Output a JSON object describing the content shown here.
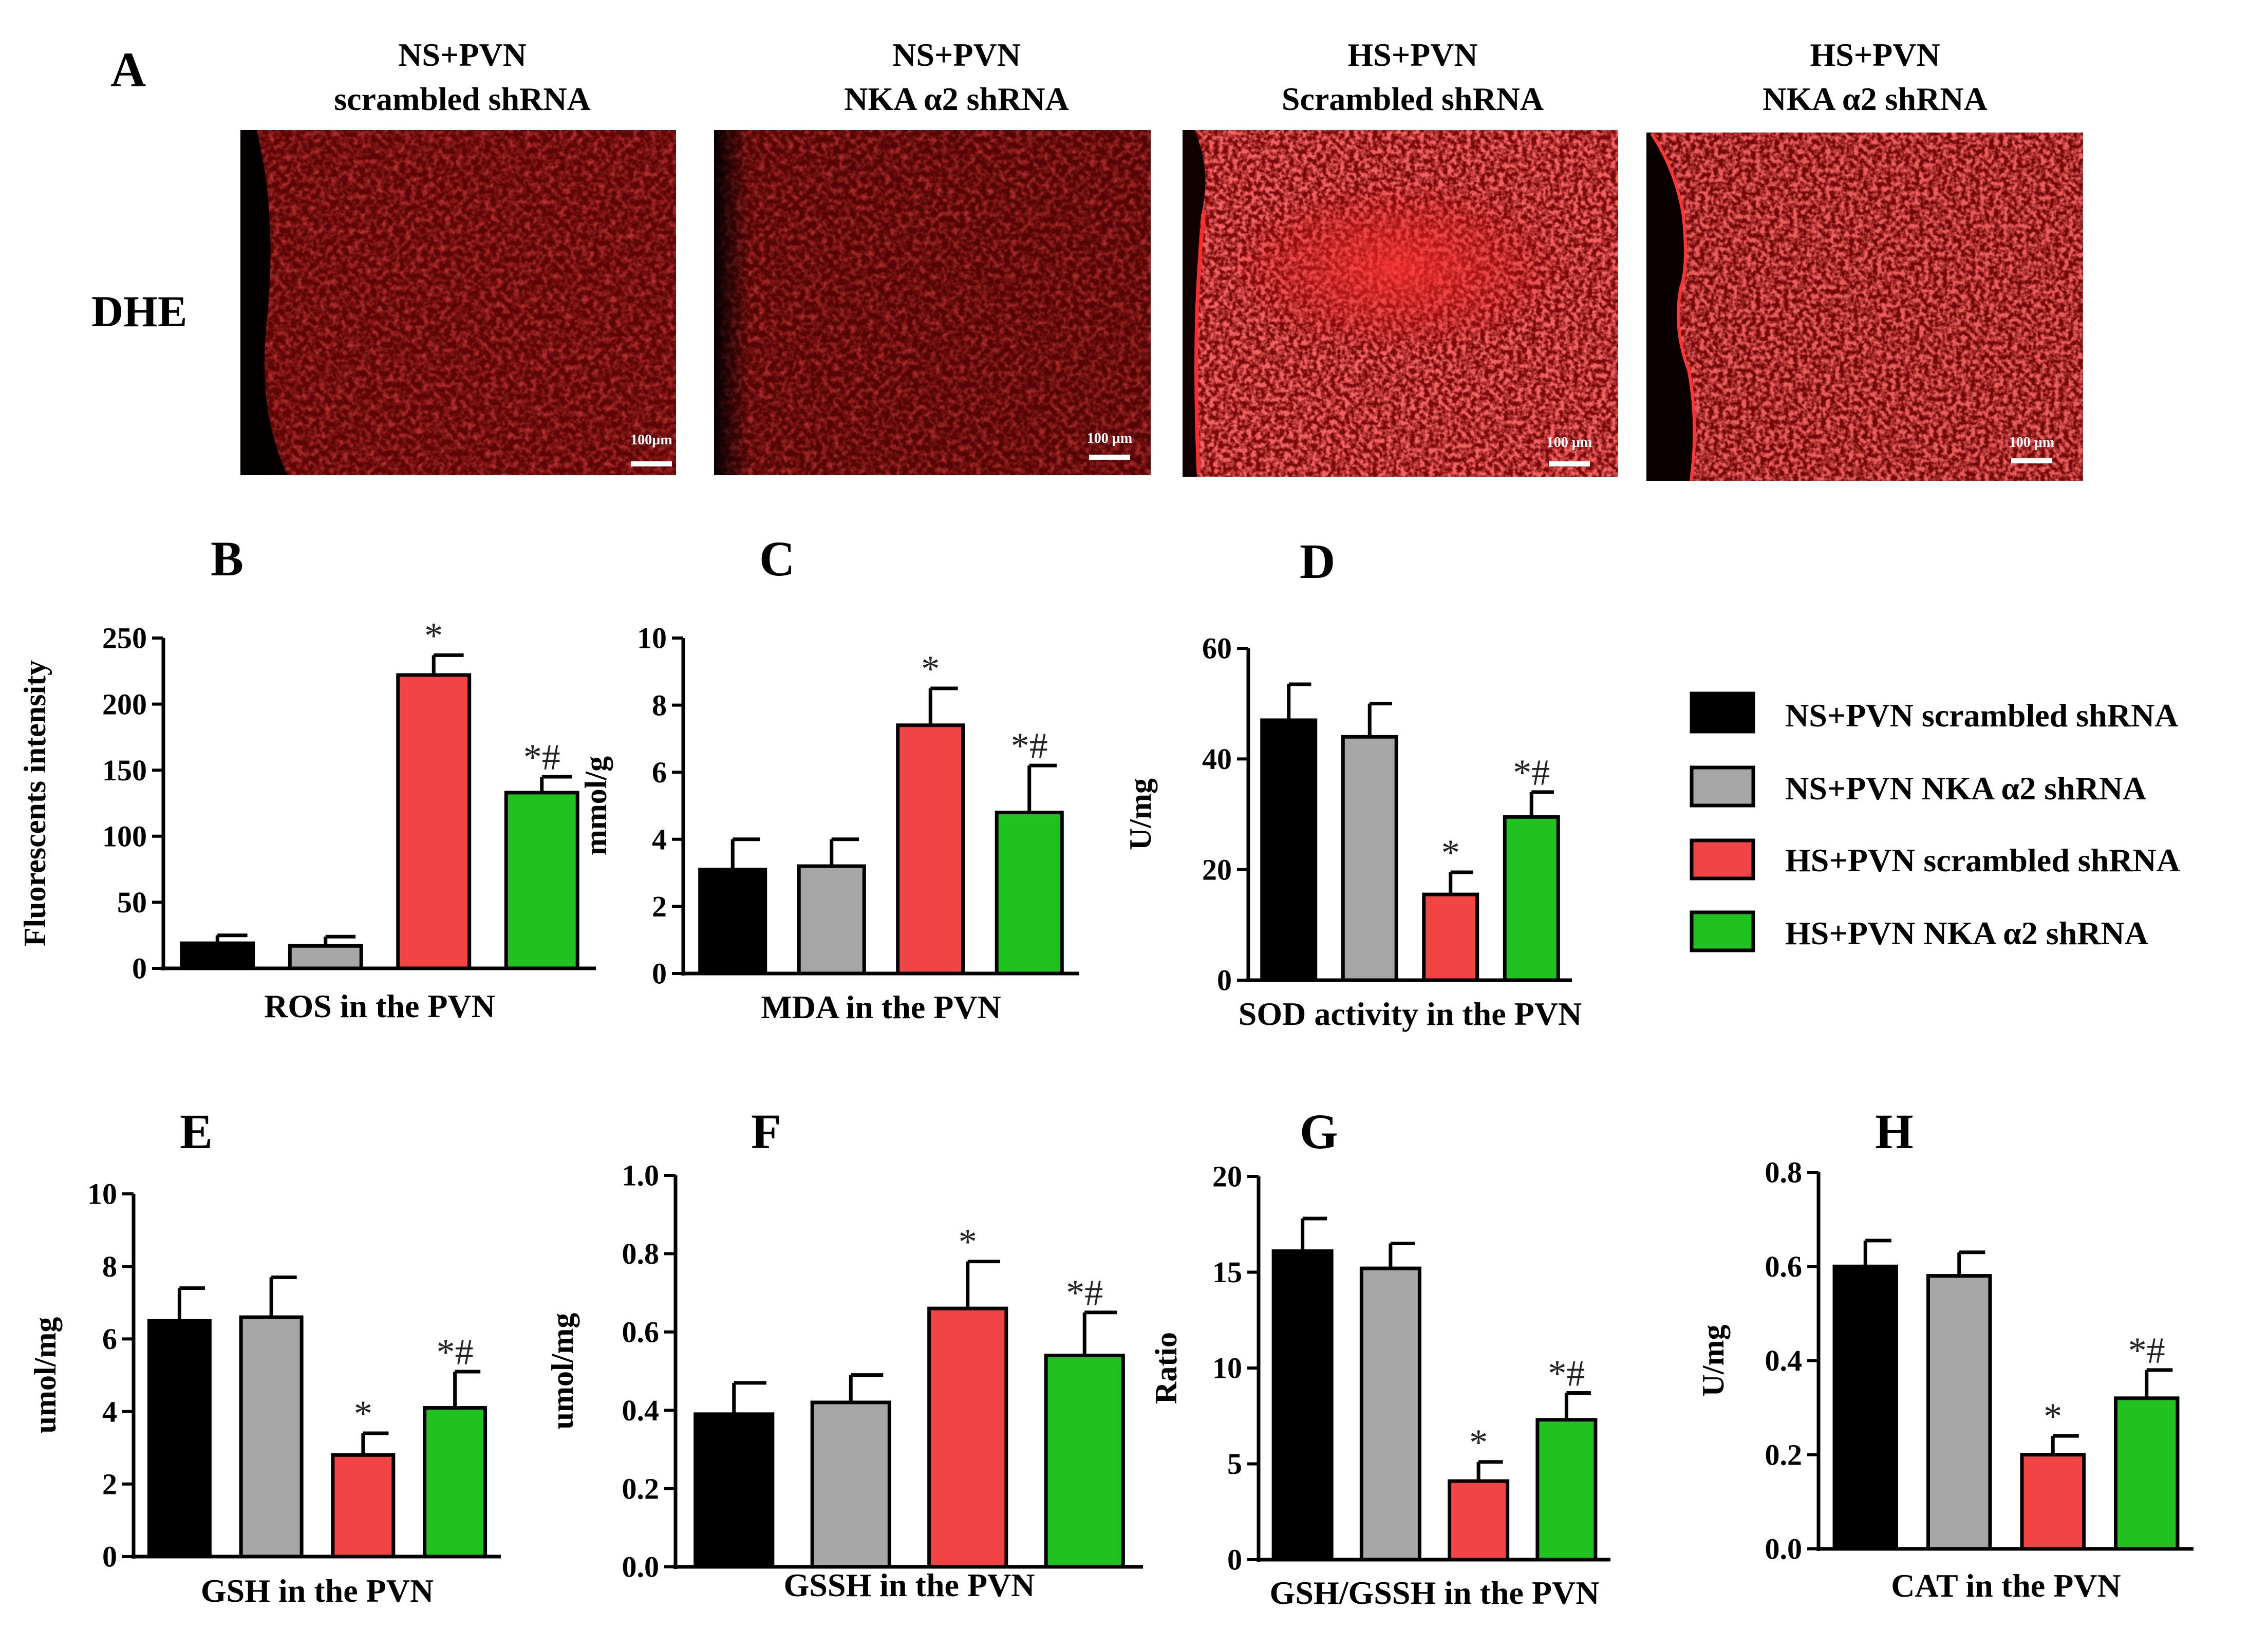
{
  "panel_a": {
    "letter": "A",
    "row_label": "DHE",
    "images": [
      {
        "title_line1": "NS+PVN",
        "title_line2": "scrambled shRNA",
        "scale": "100µm",
        "variant": "dim-edge"
      },
      {
        "title_line1": "NS+PVN",
        "title_line2": "NKA α2 shRNA",
        "scale": "100 µm",
        "variant": "dim"
      },
      {
        "title_line1": "HS+PVN",
        "title_line2": "Scrambled shRNA",
        "scale": "100 µm",
        "variant": "bright-cluster"
      },
      {
        "title_line1": "HS+PVN",
        "title_line2": "NKA α2 shRNA",
        "scale": "100 µm",
        "variant": "bright-wave"
      }
    ]
  },
  "legend": {
    "items": [
      {
        "label": "NS+PVN scrambled shRNA",
        "color": "#000000"
      },
      {
        "label": "NS+PVN NKA α2 shRNA",
        "color": "#a6a6a6"
      },
      {
        "label": "HS+PVN scrambled shRNA",
        "color": "#f24444"
      },
      {
        "label": "HS+PVN NKA α2 shRNA",
        "color": "#1fc21f"
      }
    ]
  },
  "chart_data": [
    {
      "letter": "B",
      "type": "bar",
      "title": "ROS in the PVN",
      "ylabel": "Fluorescents intensity",
      "categories": [
        "NS+PVN scrambled shRNA",
        "NS+PVN NKA α2 shRNA",
        "HS+PVN scrambled shRNA",
        "HS+PVN NKA α2 shRNA"
      ],
      "values": [
        19,
        17,
        222,
        133
      ],
      "errors": [
        6,
        7,
        15,
        12
      ],
      "marks": [
        "",
        "",
        "*",
        "*#"
      ],
      "ylim": [
        0,
        250
      ],
      "ticks": [
        0,
        50,
        100,
        150,
        200,
        250
      ],
      "tick_labels": [
        "0",
        "50",
        "100",
        "150",
        "200",
        "250"
      ]
    },
    {
      "letter": "C",
      "type": "bar",
      "title": "MDA in the PVN",
      "ylabel": "mmol/g",
      "categories": [
        "NS+PVN scrambled shRNA",
        "NS+PVN NKA α2 shRNA",
        "HS+PVN scrambled shRNA",
        "HS+PVN NKA α2 shRNA"
      ],
      "values": [
        3.1,
        3.2,
        7.4,
        4.8
      ],
      "errors": [
        0.9,
        0.8,
        1.1,
        1.4
      ],
      "marks": [
        "",
        "",
        "*",
        "*#"
      ],
      "ylim": [
        0,
        10
      ],
      "ticks": [
        0,
        2,
        4,
        6,
        8,
        10
      ],
      "tick_labels": [
        "0",
        "2",
        "4",
        "6",
        "8",
        "10"
      ]
    },
    {
      "letter": "D",
      "type": "bar",
      "title": "SOD activity in the PVN",
      "ylabel": "U/mg",
      "categories": [
        "NS+PVN scrambled shRNA",
        "NS+PVN NKA α2 shRNA",
        "HS+PVN scrambled shRNA",
        "HS+PVN NKA α2 shRNA"
      ],
      "values": [
        47,
        44,
        15.5,
        29.5
      ],
      "errors": [
        6.5,
        6,
        4,
        4.5
      ],
      "marks": [
        "",
        "",
        "*",
        "*#"
      ],
      "ylim": [
        0,
        60
      ],
      "ticks": [
        0,
        20,
        40,
        60
      ],
      "tick_labels": [
        "0",
        "20",
        "40",
        "60"
      ]
    },
    {
      "letter": "E",
      "type": "bar",
      "title": "GSH in the PVN",
      "ylabel": "umol/mg",
      "categories": [
        "NS+PVN scrambled shRNA",
        "NS+PVN NKA α2 shRNA",
        "HS+PVN scrambled shRNA",
        "HS+PVN NKA α2 shRNA"
      ],
      "values": [
        6.5,
        6.6,
        2.8,
        4.1
      ],
      "errors": [
        0.9,
        1.1,
        0.6,
        1.0
      ],
      "marks": [
        "",
        "",
        "*",
        "*#"
      ],
      "ylim": [
        0,
        10
      ],
      "ticks": [
        0,
        2,
        4,
        6,
        8,
        10
      ],
      "tick_labels": [
        "0",
        "2",
        "4",
        "6",
        "8",
        "10"
      ]
    },
    {
      "letter": "F",
      "type": "bar",
      "title": "GSSH in the PVN",
      "ylabel": "umol/mg",
      "categories": [
        "NS+PVN scrambled shRNA",
        "NS+PVN NKA α2 shRNA",
        "HS+PVN scrambled shRNA",
        "HS+PVN NKA α2 shRNA"
      ],
      "values": [
        0.39,
        0.42,
        0.66,
        0.54
      ],
      "errors": [
        0.08,
        0.07,
        0.12,
        0.11
      ],
      "marks": [
        "",
        "",
        "*",
        "*#"
      ],
      "ylim": [
        0,
        1
      ],
      "ticks": [
        0,
        0.2,
        0.4,
        0.6,
        0.8,
        1.0
      ],
      "tick_labels": [
        "0.0",
        "0.2",
        "0.4",
        "0.6",
        "0.8",
        "1.0"
      ]
    },
    {
      "letter": "G",
      "type": "bar",
      "title": "GSH/GSSH in the PVN",
      "ylabel": "Ratio",
      "categories": [
        "NS+PVN scrambled shRNA",
        "NS+PVN NKA α2 shRNA",
        "HS+PVN scrambled shRNA",
        "HS+PVN NKA α2 shRNA"
      ],
      "values": [
        16.1,
        15.2,
        4.1,
        7.3
      ],
      "errors": [
        1.7,
        1.3,
        1.0,
        1.4
      ],
      "marks": [
        "",
        "",
        "*",
        "*#"
      ],
      "ylim": [
        0,
        20
      ],
      "ticks": [
        0,
        5,
        10,
        15,
        20
      ],
      "tick_labels": [
        "0",
        "5",
        "10",
        "15",
        "20"
      ]
    },
    {
      "letter": "H",
      "type": "bar",
      "title": "CAT in the PVN",
      "ylabel": "U/mg",
      "categories": [
        "NS+PVN scrambled shRNA",
        "NS+PVN NKA α2 shRNA",
        "HS+PVN scrambled shRNA",
        "HS+PVN NKA α2 shRNA"
      ],
      "values": [
        0.6,
        0.58,
        0.2,
        0.32
      ],
      "errors": [
        0.055,
        0.05,
        0.04,
        0.06
      ],
      "marks": [
        "",
        "",
        "*",
        "*#"
      ],
      "ylim": [
        0,
        0.8
      ],
      "ticks": [
        0,
        0.2,
        0.4,
        0.6,
        0.8
      ],
      "tick_labels": [
        "0.0",
        "0.2",
        "0.4",
        "0.6",
        "0.8"
      ]
    }
  ]
}
